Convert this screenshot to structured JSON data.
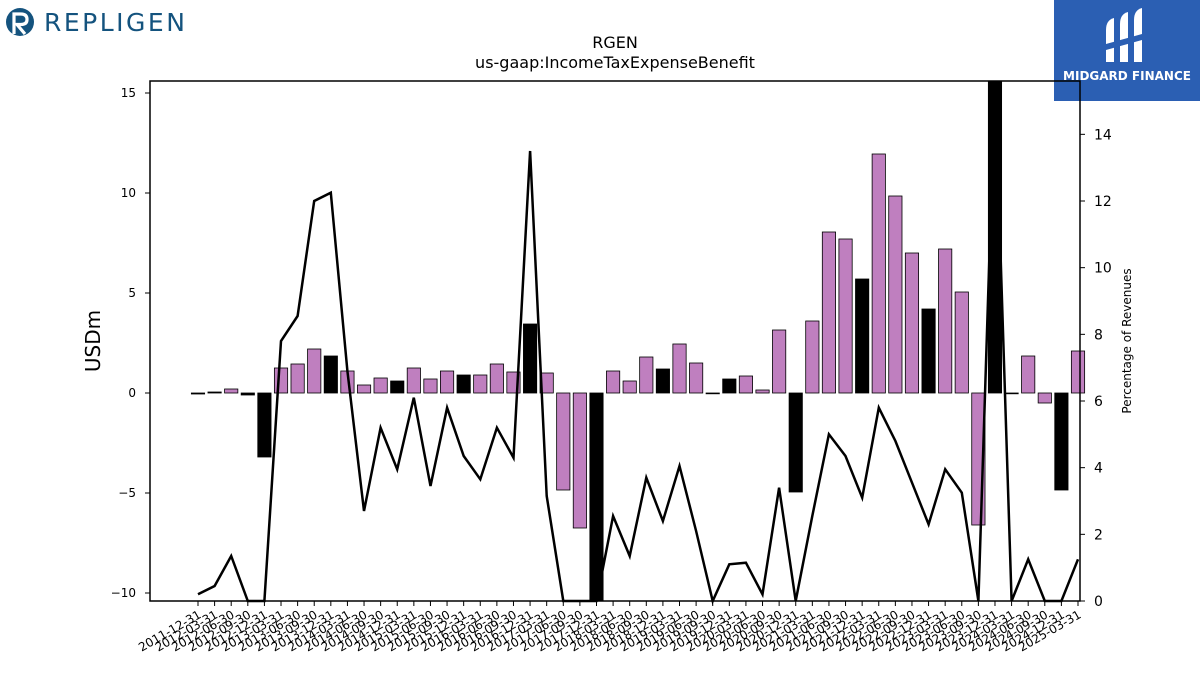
{
  "brand": {
    "name": "REPLIGEN",
    "partner": "MIDGARD FINANCE"
  },
  "colors": {
    "purple": "#bf7fbf",
    "black": "#000000",
    "line": "#000000",
    "partner_bg": "#2b5fb3",
    "brand_text": "#14537e"
  },
  "chart_data": {
    "type": "bar",
    "title": "RGEN",
    "subtitle": "us-gaap:IncomeTaxExpenseBenefit",
    "ylabel": "USDm",
    "y2label": "Percentage of Revenues",
    "ylim": [
      -10.4,
      15.6
    ],
    "y2lim": [
      0,
      15.6
    ],
    "yticks": [
      -10,
      -5,
      0,
      5,
      10,
      15
    ],
    "y2ticks": [
      0,
      2,
      4,
      6,
      8,
      10,
      12,
      14
    ],
    "categories": [
      "2011-12-31",
      "2012-03-31",
      "2012-06-30",
      "2012-09-30",
      "2012-12-31",
      "2013-03-31",
      "2013-06-30",
      "2013-09-30",
      "2013-12-31",
      "2014-03-31",
      "2014-06-30",
      "2014-09-30",
      "2014-12-31",
      "2015-03-31",
      "2015-06-30",
      "2015-09-30",
      "2015-12-31",
      "2016-03-31",
      "2016-06-30",
      "2016-09-30",
      "2016-12-31",
      "2017-03-31",
      "2017-06-30",
      "2017-09-30",
      "2017-12-31",
      "2018-03-31",
      "2018-06-30",
      "2018-09-30",
      "2018-12-31",
      "2019-03-31",
      "2019-06-30",
      "2019-09-30",
      "2019-12-31",
      "2020-03-31",
      "2020-06-30",
      "2020-09-30",
      "2020-12-31",
      "2021-03-31",
      "2021-06-30",
      "2021-09-30",
      "2021-12-31",
      "2022-03-31",
      "2022-06-30",
      "2022-09-30",
      "2022-12-31",
      "2023-03-31",
      "2023-06-30",
      "2023-09-30",
      "2023-12-31",
      "2024-03-31",
      "2024-06-30",
      "2024-09-30",
      "2024-12-31",
      "2025-03-31"
    ],
    "series": [
      {
        "kind": "bar",
        "values": [
          -0.05,
          0.05,
          0.2,
          -0.1,
          -3.2,
          1.25,
          1.45,
          2.2,
          1.85,
          1.1,
          0.4,
          0.75,
          0.6,
          1.25,
          0.7,
          1.1,
          0.9,
          0.9,
          1.45,
          1.05,
          3.45,
          1.0,
          -4.85,
          -6.75,
          -10.4,
          1.1,
          0.6,
          1.8,
          1.2,
          2.45,
          1.5,
          0.0,
          0.7,
          0.85,
          0.15,
          3.15,
          -4.95,
          3.6,
          8.05,
          7.7,
          5.7,
          11.95,
          9.85,
          7.0,
          4.2,
          7.2,
          5.05,
          -6.6,
          15.6,
          0.0,
          1.85,
          -0.5,
          -4.85,
          2.1
        ],
        "colors": [
          "black",
          "black",
          "purple",
          "black",
          "black",
          "purple",
          "purple",
          "purple",
          "black",
          "purple",
          "purple",
          "purple",
          "black",
          "purple",
          "purple",
          "purple",
          "black",
          "purple",
          "purple",
          "purple",
          "black",
          "purple",
          "purple",
          "purple",
          "black",
          "purple",
          "purple",
          "purple",
          "black",
          "purple",
          "purple",
          "purple",
          "black",
          "purple",
          "purple",
          "purple",
          "black",
          "purple",
          "purple",
          "purple",
          "black",
          "purple",
          "purple",
          "purple",
          "black",
          "purple",
          "purple",
          "purple",
          "black",
          "purple",
          "purple",
          "purple",
          "black",
          "purple"
        ]
      },
      {
        "kind": "line",
        "axis": "right",
        "values": [
          0.2,
          0.45,
          1.35,
          0.0,
          0.0,
          7.8,
          8.55,
          12.0,
          12.25,
          6.9,
          2.7,
          5.2,
          3.95,
          6.1,
          3.45,
          5.8,
          4.35,
          3.65,
          5.2,
          4.3,
          13.5,
          3.15,
          0.0,
          0.0,
          0.0,
          2.55,
          1.35,
          3.7,
          2.4,
          4.05,
          2.1,
          0.0,
          1.1,
          1.15,
          0.2,
          3.4,
          0.0,
          2.55,
          5.0,
          4.35,
          3.1,
          5.8,
          4.8,
          3.55,
          2.3,
          3.95,
          3.25,
          0.0,
          15.6,
          0.0,
          1.25,
          0.0,
          0.0,
          1.25
        ]
      }
    ]
  }
}
